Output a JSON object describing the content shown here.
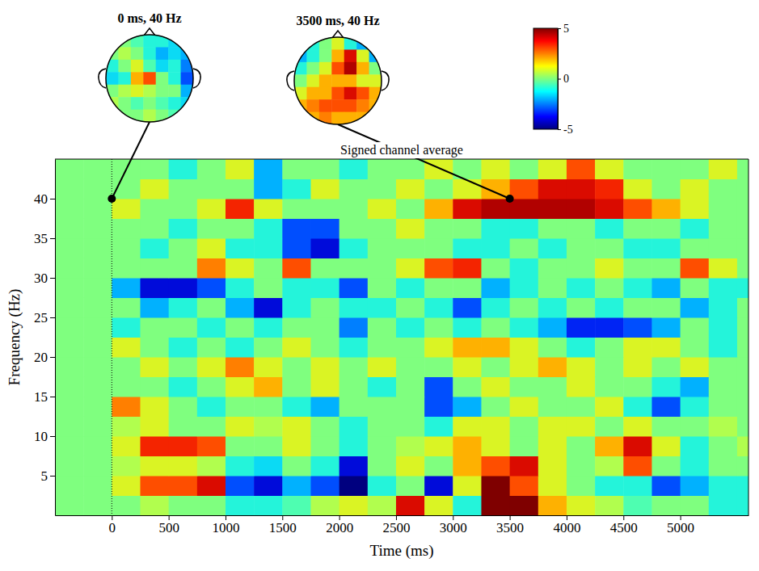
{
  "chart_data": {
    "type": "heatmap",
    "title": "Signed channel average",
    "x_label": "Time (ms)",
    "y_label": "Frequency (Hz)",
    "xlim": [
      -500,
      5600
    ],
    "ylim": [
      0,
      45
    ],
    "xticks": [
      0,
      500,
      1000,
      1500,
      2000,
      2500,
      3000,
      3500,
      4000,
      4500,
      5000
    ],
    "yticks": [
      5,
      10,
      15,
      20,
      25,
      30,
      35,
      40
    ],
    "x_edges": [
      -500,
      -250,
      0,
      250,
      500,
      750,
      1000,
      1250,
      1500,
      1750,
      2000,
      2250,
      2500,
      2750,
      3000,
      3250,
      3500,
      3750,
      4000,
      4250,
      4500,
      4750,
      5000,
      5250,
      5500,
      5600
    ],
    "y_edges": [
      0,
      2.5,
      5,
      7.5,
      10,
      12.5,
      15,
      17.5,
      20,
      22.5,
      25,
      27.5,
      30,
      32.5,
      35,
      37.5,
      40,
      42.5,
      45
    ],
    "cells": [
      [
        0,
        0,
        0,
        0.5,
        0,
        0,
        -1,
        -1,
        -0.5,
        0.5,
        1,
        0.5,
        4,
        1,
        -1,
        5,
        5,
        2,
        1,
        0.5,
        -0.5,
        0,
        0,
        -1,
        -1
      ],
      [
        0,
        0,
        1,
        3,
        3,
        4,
        -3,
        -4,
        -2,
        -3,
        -5,
        -1,
        0,
        -4,
        1,
        5,
        3,
        1,
        0,
        -1,
        -1,
        -3,
        -2,
        -1,
        -1
      ],
      [
        0,
        0,
        0.5,
        1,
        1,
        0.5,
        -1,
        -1.5,
        0,
        -1,
        -4,
        0,
        1,
        0,
        2,
        3,
        4,
        1,
        0,
        0.5,
        3,
        0,
        -1,
        0,
        0
      ],
      [
        0,
        0,
        1,
        3.5,
        3.5,
        3,
        0,
        0,
        1,
        0,
        -1,
        0,
        0.5,
        1,
        2,
        1,
        0,
        1,
        0,
        2,
        4,
        1,
        -1,
        0,
        0.5
      ],
      [
        0,
        0,
        0.5,
        1,
        0,
        0,
        1,
        0.5,
        1,
        0,
        -1,
        0,
        0,
        -1,
        1,
        1,
        0,
        1,
        1,
        0,
        1,
        0,
        0,
        0.5,
        0
      ],
      [
        0,
        0,
        2.5,
        1,
        0,
        -1,
        0,
        0,
        -1,
        -2,
        0,
        0,
        0,
        -3,
        -2,
        0,
        1,
        0,
        0,
        1,
        -1,
        -3,
        -1,
        0,
        0
      ],
      [
        0,
        0,
        0,
        0,
        -1,
        0,
        1,
        2,
        0,
        1,
        0,
        -1,
        0,
        -3,
        0,
        1,
        0,
        0,
        1,
        0,
        0,
        -1,
        -2,
        0,
        0
      ],
      [
        0,
        0,
        0,
        1,
        0,
        1,
        2.5,
        1,
        0,
        1,
        0,
        1,
        0,
        0,
        1,
        0,
        1,
        2,
        1,
        0,
        1,
        0,
        1,
        0,
        0
      ],
      [
        0,
        0,
        1,
        0,
        -1,
        0,
        -1,
        0,
        1,
        0,
        -1,
        0,
        0,
        1,
        2,
        2,
        1,
        0,
        -1,
        0,
        1,
        1,
        0,
        -1,
        0
      ],
      [
        0,
        0,
        -1,
        0,
        0,
        -1,
        0,
        -1,
        0,
        0,
        -2.5,
        0,
        -1,
        0,
        -1,
        0,
        -1,
        -2,
        -3.5,
        -3.5,
        -3,
        -2,
        0,
        -1,
        0
      ],
      [
        0,
        0,
        0,
        -2,
        -1,
        0,
        -2,
        -4,
        -1,
        0,
        -1,
        -1,
        0,
        -1,
        -3,
        -1,
        0,
        -1,
        0,
        -1,
        0,
        0,
        -2,
        -1,
        0
      ],
      [
        0,
        0,
        -2,
        -4,
        -4,
        -3,
        -1,
        0,
        -1,
        -1,
        -3,
        0,
        -1,
        0,
        0,
        -2,
        -1,
        0,
        -1,
        0,
        -1,
        -2,
        0,
        -1,
        -1
      ],
      [
        0,
        0,
        0,
        0,
        0,
        2.5,
        1,
        0,
        3,
        0,
        0,
        0,
        1,
        3,
        3.5,
        0,
        -1,
        0,
        0,
        1,
        0,
        0,
        3,
        1,
        0
      ],
      [
        0,
        0,
        0,
        -1,
        0,
        1,
        -1,
        -1,
        -3,
        -4,
        -1,
        0,
        0,
        0,
        -1,
        -1,
        0,
        -1,
        0,
        0,
        -1,
        -1,
        0,
        0,
        0
      ],
      [
        0,
        0,
        0,
        0,
        -1,
        0,
        0,
        -1,
        -3,
        -3,
        0,
        0,
        1,
        0,
        0,
        -1,
        -1,
        0,
        0,
        -1,
        0,
        0,
        -1,
        0,
        0
      ],
      [
        0,
        0,
        1,
        0,
        0,
        1,
        3.5,
        1,
        0,
        0,
        0,
        1,
        0,
        2,
        4,
        4.5,
        4.5,
        4.5,
        4.5,
        4,
        3,
        2,
        1,
        0,
        0
      ],
      [
        0,
        0,
        0,
        1,
        0,
        0,
        0,
        -2,
        -1,
        1,
        0,
        0,
        1,
        0,
        1,
        2,
        3,
        4,
        4,
        3.5,
        1,
        0,
        1,
        0,
        0
      ],
      [
        0,
        0,
        0,
        0,
        -1,
        0,
        1,
        -2,
        0,
        0,
        -1,
        0,
        0,
        1,
        0,
        1,
        0,
        1,
        3,
        1,
        0,
        0,
        0,
        1,
        0
      ]
    ],
    "colorbar": {
      "lim": [
        -5,
        5
      ],
      "ticks": [
        -5,
        0,
        5
      ]
    },
    "vline": 0,
    "annotations": [
      {
        "x": 0,
        "y": 40,
        "label": "0 ms, 40 Hz",
        "topomap": [
          [
            0,
            0,
            -0.5,
            -1,
            -1,
            -1.5,
            -2
          ],
          [
            0,
            0.5,
            0,
            -1,
            -2,
            -1.5,
            -2
          ],
          [
            -1,
            0,
            1,
            -0.5,
            -1.5,
            -1,
            -2.5
          ],
          [
            -1.5,
            -1,
            2,
            3,
            0,
            -1,
            -3
          ],
          [
            0,
            0.5,
            1,
            0.5,
            0,
            0,
            -2
          ],
          [
            0.5,
            0,
            -0.5,
            0,
            -0.5,
            -1,
            -1.5
          ],
          [
            0,
            0,
            0,
            0.5,
            0,
            -0.5,
            -1
          ]
        ]
      },
      {
        "x": 3500,
        "y": 40,
        "label": "3500 ms, 40 Hz",
        "topomap": [
          [
            -1,
            -1,
            0,
            1,
            -1,
            -2,
            -3
          ],
          [
            -2,
            -1,
            0,
            2,
            4,
            1,
            -2
          ],
          [
            -1,
            0,
            1,
            3,
            4.5,
            2,
            0
          ],
          [
            0,
            1,
            2,
            2,
            2,
            1,
            1
          ],
          [
            1,
            2,
            2,
            3,
            4,
            3,
            2
          ],
          [
            2,
            2.5,
            3,
            3,
            3,
            2.5,
            2
          ],
          [
            2,
            2,
            2.5,
            2,
            2,
            2,
            2
          ]
        ]
      }
    ]
  }
}
